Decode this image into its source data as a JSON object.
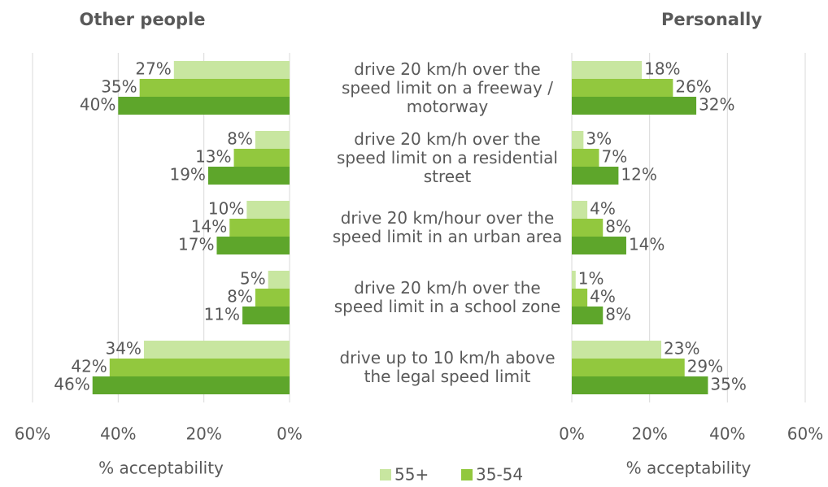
{
  "chart_data": [
    {
      "type": "bar",
      "orientation": "horizontal",
      "x_reversed": true,
      "title": "Other people",
      "xlabel": "% acceptability",
      "categories": [
        "drive 20 km/h over the speed limit on a freeway / motorway",
        "drive 20 km/h over the speed limit on a residential street",
        "drive 20 km/hour over the speed limit in an urban area",
        "drive 20 km/h over the speed limit in a school zone",
        "drive up to 10 km/h above the legal speed limit"
      ],
      "xlim": [
        0,
        60
      ],
      "xticks": [
        {
          "value": 0,
          "label": "0%"
        },
        {
          "value": 20,
          "label": "20%"
        },
        {
          "value": 40,
          "label": "40%"
        },
        {
          "value": 60,
          "label": "60%"
        }
      ],
      "grid": true,
      "legend": "bottom",
      "series": [
        {
          "name": "55+",
          "color": "#c8e6a0",
          "values": [
            27,
            8,
            10,
            5,
            34
          ],
          "value_labels": [
            "27%",
            "8%",
            "10%",
            "5%",
            "34%"
          ]
        },
        {
          "name": "35-54",
          "color": "#92c83e",
          "values": [
            35,
            13,
            14,
            8,
            42
          ],
          "value_labels": [
            "35%",
            "13%",
            "14%",
            "8%",
            "42%"
          ]
        },
        {
          "color": "#5ea62b",
          "values": [
            40,
            19,
            17,
            11,
            46
          ],
          "value_labels": [
            "40%",
            "19%",
            "17%",
            "11%",
            "46%"
          ]
        }
      ]
    },
    {
      "type": "bar",
      "orientation": "horizontal",
      "x_reversed": false,
      "title": "Personally",
      "xlabel": "% acceptability",
      "xlim": [
        0,
        60
      ],
      "xticks": [
        {
          "value": 0,
          "label": "0%"
        },
        {
          "value": 20,
          "label": "20%"
        },
        {
          "value": 40,
          "label": "40%"
        },
        {
          "value": 60,
          "label": "60%"
        }
      ],
      "grid": true,
      "series": [
        {
          "color": "#c8e6a0",
          "values": [
            18,
            3,
            4,
            1,
            23
          ],
          "value_labels": [
            "18%",
            "3%",
            "4%",
            "1%",
            "23%"
          ]
        },
        {
          "color": "#92c83e",
          "values": [
            26,
            7,
            8,
            4,
            29
          ],
          "value_labels": [
            "26%",
            "7%",
            "8%",
            "4%",
            "29%"
          ]
        },
        {
          "color": "#5ea62b",
          "values": [
            32,
            12,
            14,
            8,
            35
          ],
          "value_labels": [
            "32%",
            "12%",
            "14%",
            "8%",
            "35%"
          ]
        }
      ]
    }
  ]
}
